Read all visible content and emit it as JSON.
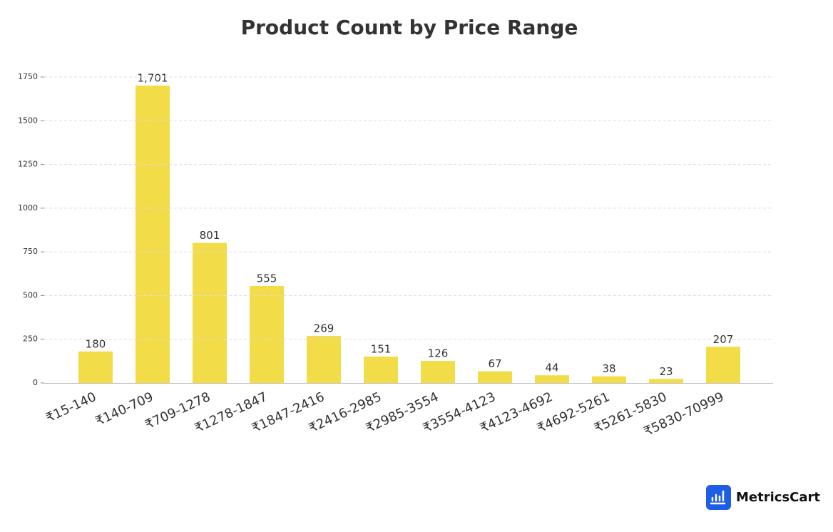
{
  "chart_data": {
    "type": "bar",
    "title": "Product Count by Price Range",
    "categories": [
      "₹15-140",
      "₹140-709",
      "₹709-1278",
      "₹1278-1847",
      "₹1847-2416",
      "₹2416-2985",
      "₹2985-3554",
      "₹3554-4123",
      "₹4123-4692",
      "₹4692-5261",
      "₹5261-5830",
      "₹5830-70999"
    ],
    "values": [
      180,
      1701,
      801,
      555,
      269,
      151,
      126,
      67,
      44,
      38,
      23,
      207
    ],
    "value_labels": [
      "180",
      "1,701",
      "801",
      "555",
      "269",
      "151",
      "126",
      "67",
      "44",
      "38",
      "23",
      "207"
    ],
    "color": "#f2dc48",
    "ylim": [
      0,
      1750
    ],
    "yticks": [
      0,
      250,
      500,
      750,
      1000,
      1250,
      1500,
      1750
    ],
    "grid": true
  },
  "logo": {
    "text": "MetricsCart"
  }
}
